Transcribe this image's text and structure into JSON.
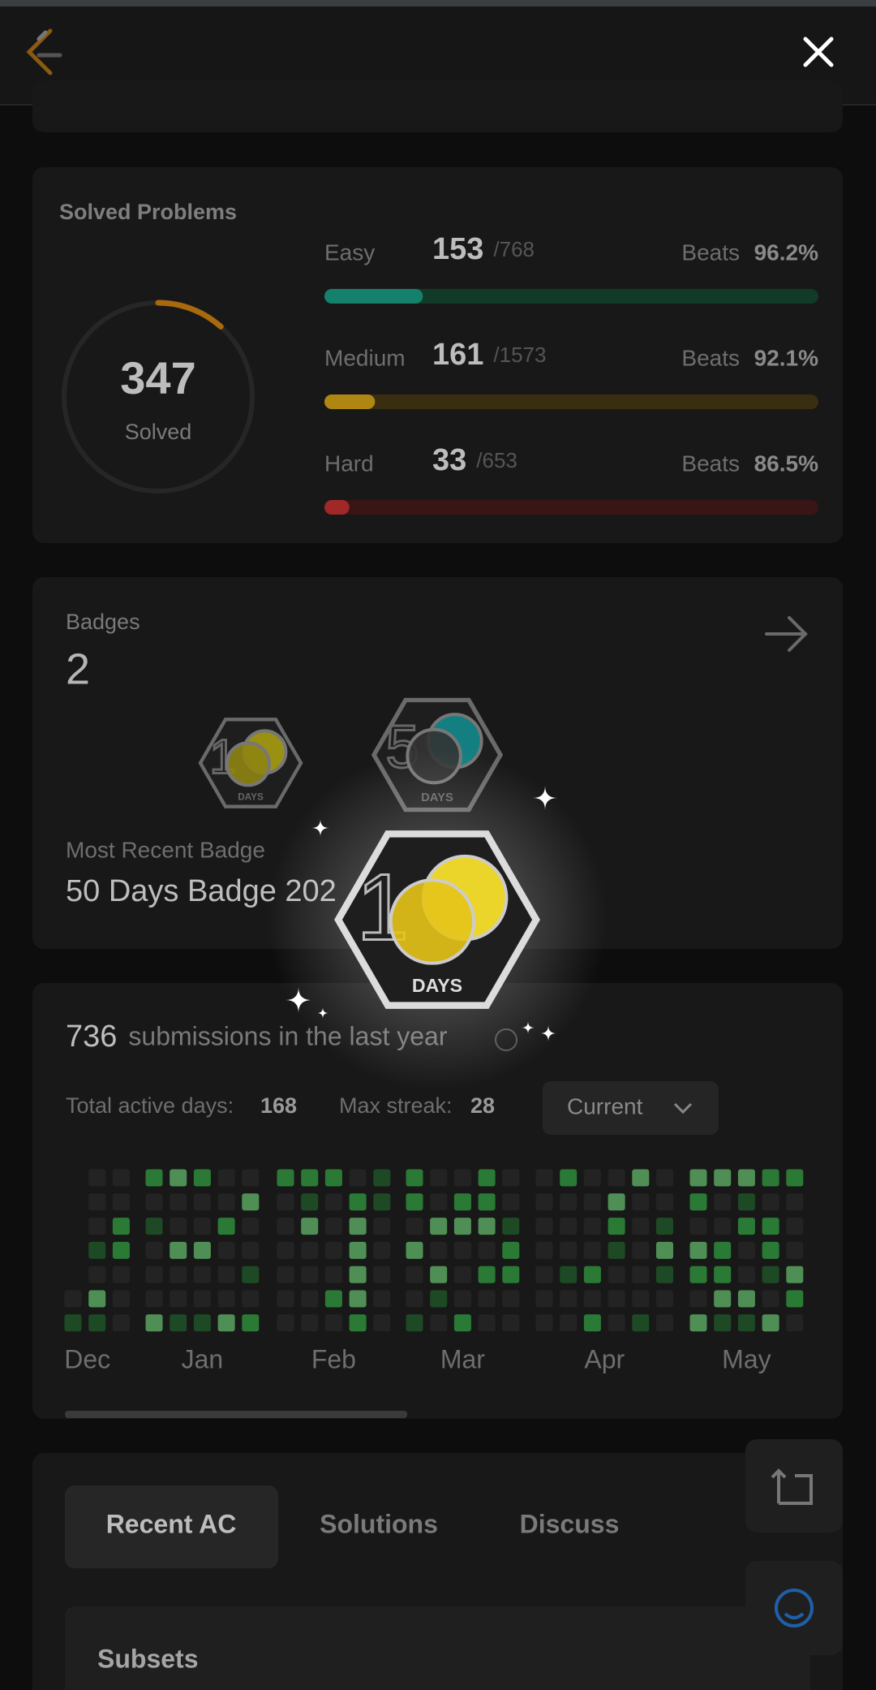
{
  "solved": {
    "title": "Solved Problems",
    "total": 347,
    "total_caption": "Solved",
    "beats_label": "Beats",
    "levels": [
      {
        "name": "Easy",
        "solved": 153,
        "total": {
          "value": 768,
          "label": "/768"
        },
        "beats": {
          "value": 96.2,
          "label": "96.2%"
        }
      },
      {
        "name": "Medium",
        "solved": 161,
        "total": {
          "value": 1573,
          "label": "/1573"
        },
        "beats": {
          "value": 92.1,
          "label": "92.1%"
        }
      },
      {
        "name": "Hard",
        "solved": 33,
        "total": {
          "value": 653,
          "label": "/653"
        },
        "beats": {
          "value": 86.5,
          "label": "86.5%"
        }
      }
    ]
  },
  "badges": {
    "title": "Badges",
    "count": 2,
    "recent_label": "Most Recent Badge",
    "recent_name": "50 Days Badge 202",
    "caption": "DAYS"
  },
  "submissions": {
    "count": 736,
    "text": "submissions in the last year",
    "active_label": "Total active days:",
    "active": 168,
    "streak_label": "Max streak:",
    "streak": 28,
    "dropdown": "Current",
    "months": [
      "Dec",
      "Jan",
      "Feb",
      "Mar",
      "Apr",
      "May"
    ]
  },
  "tabs": [
    "Recent AC",
    "Solutions",
    "Discuss"
  ],
  "recent": [
    "Subsets"
  ]
}
